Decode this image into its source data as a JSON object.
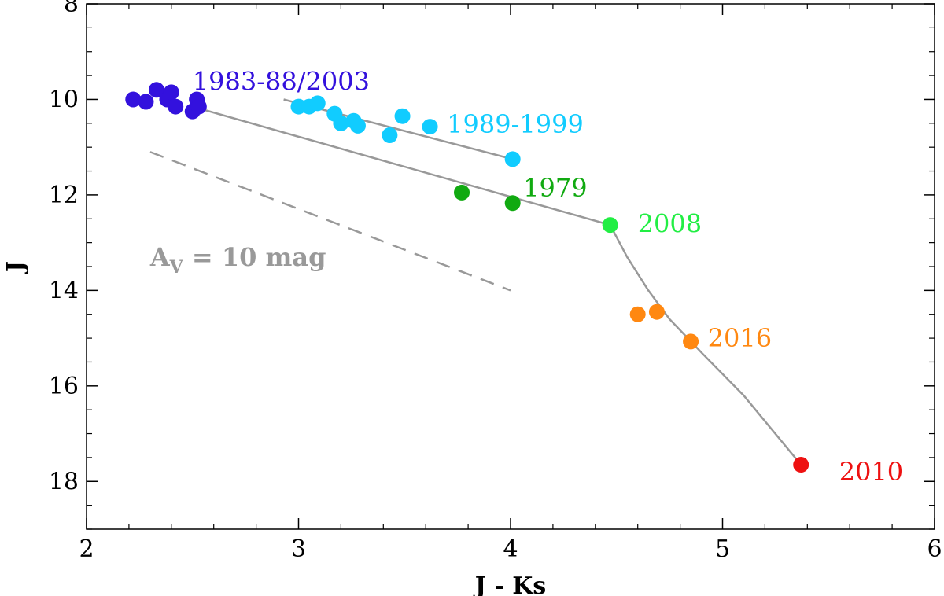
{
  "chart_data": {
    "type": "scatter",
    "xlabel": "J - Ks",
    "ylabel": "J",
    "xlim": [
      2,
      6
    ],
    "ylim": [
      19,
      8
    ],
    "y_inverted": true,
    "grid": false,
    "xticks": [
      2,
      3,
      4,
      5,
      6
    ],
    "xtick_labels": [
      "2",
      "3",
      "4",
      "5",
      "6"
    ],
    "yticks": [
      8,
      10,
      12,
      14,
      16,
      18
    ],
    "ytick_labels": [
      "8",
      "10",
      "12",
      "14",
      "16",
      "18"
    ],
    "series": [
      {
        "name": "1983-88/2003",
        "color": "#3311dd",
        "points": [
          [
            2.22,
            10.0
          ],
          [
            2.28,
            10.05
          ],
          [
            2.33,
            9.8
          ],
          [
            2.38,
            10.0
          ],
          [
            2.4,
            9.85
          ],
          [
            2.42,
            10.15
          ],
          [
            2.5,
            10.25
          ],
          [
            2.52,
            10.0
          ],
          [
            2.53,
            10.15
          ]
        ]
      },
      {
        "name": "1989-1999",
        "color": "#11ccff",
        "points": [
          [
            3.0,
            10.15
          ],
          [
            3.05,
            10.15
          ],
          [
            3.09,
            10.08
          ],
          [
            3.17,
            10.3
          ],
          [
            3.2,
            10.5
          ],
          [
            3.26,
            10.45
          ],
          [
            3.28,
            10.55
          ],
          [
            3.43,
            10.75
          ],
          [
            3.49,
            10.35
          ],
          [
            3.62,
            10.57
          ],
          [
            4.01,
            11.25
          ]
        ]
      },
      {
        "name": "1979",
        "color": "#11aa11",
        "points": [
          [
            3.77,
            11.95
          ],
          [
            4.01,
            12.17
          ]
        ]
      },
      {
        "name": "2008",
        "color": "#22ee44",
        "points": [
          [
            4.47,
            12.63
          ]
        ]
      },
      {
        "name": "2016",
        "color": "#ff8811",
        "points": [
          [
            4.6,
            14.5
          ],
          [
            4.69,
            14.45
          ],
          [
            4.85,
            15.07
          ]
        ]
      },
      {
        "name": "2010",
        "color": "#ee1111",
        "points": [
          [
            5.37,
            17.65
          ]
        ]
      }
    ],
    "label_positions": [
      {
        "text": "1983-88/2003",
        "x": 2.5,
        "y": 9.62,
        "color": "#3311dd"
      },
      {
        "text": "1989-1999",
        "x": 3.7,
        "y": 10.52,
        "color": "#11ccff"
      },
      {
        "text": "1979",
        "x": 4.06,
        "y": 11.85,
        "color": "#11aa11"
      },
      {
        "text": "2008",
        "x": 4.6,
        "y": 12.6,
        "color": "#22ee44"
      },
      {
        "text": "2016",
        "x": 4.93,
        "y": 15.0,
        "color": "#ff8811"
      },
      {
        "text": "2010",
        "x": 5.55,
        "y": 17.8,
        "color": "#ee1111"
      }
    ],
    "fit_lines": [
      {
        "points": [
          [
            2.5,
            10.15
          ],
          [
            4.47,
            12.63
          ],
          [
            4.55,
            13.3
          ],
          [
            4.65,
            14.0
          ],
          [
            4.75,
            14.6
          ],
          [
            4.9,
            15.3
          ],
          [
            5.1,
            16.2
          ],
          [
            5.37,
            17.65
          ]
        ]
      },
      {
        "points": [
          [
            2.93,
            10.0
          ],
          [
            4.01,
            11.25
          ]
        ]
      }
    ],
    "extinction_vector": {
      "points": [
        [
          2.3,
          11.1
        ],
        [
          4.0,
          14.0
        ]
      ],
      "label_main": "A",
      "label_sub": "V",
      "label_rest": " = 10 mag",
      "label_anchor": [
        2.3,
        13.3
      ],
      "color": "#999999"
    },
    "line_color": "#999999"
  }
}
